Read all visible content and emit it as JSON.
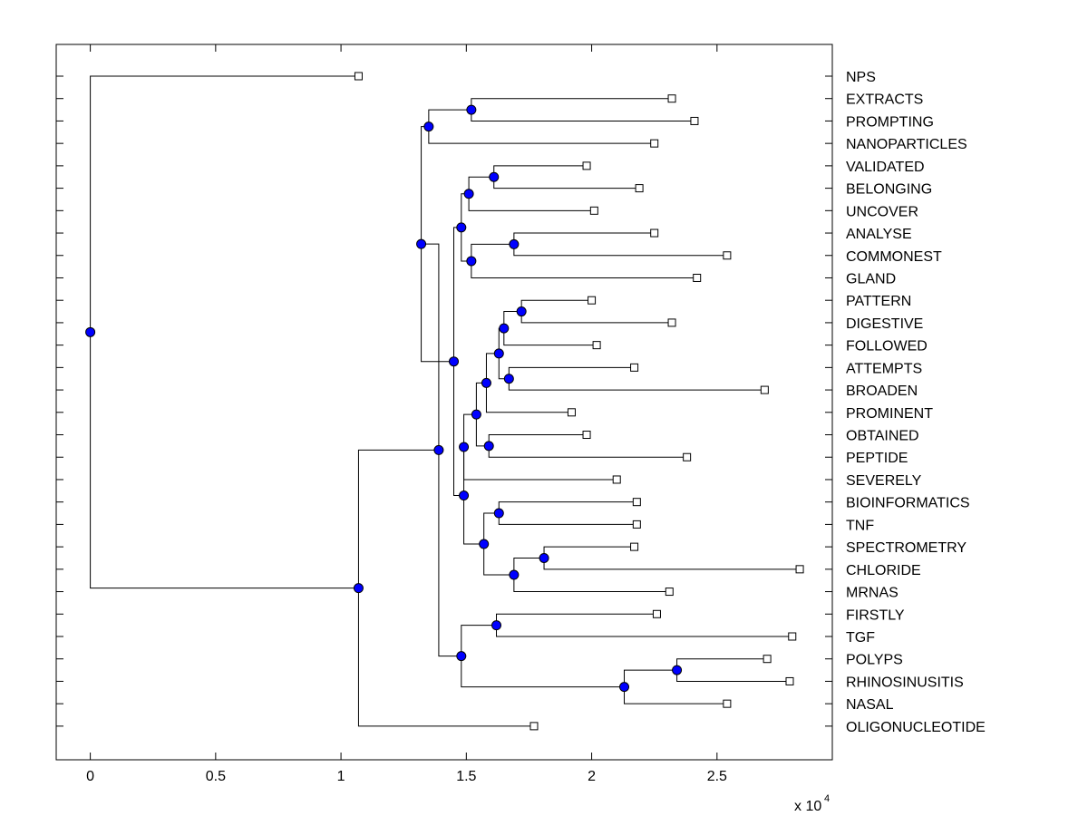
{
  "chart_data": {
    "type": "dendrogram",
    "x_axis": {
      "ticks": [
        0,
        0.5,
        1,
        1.5,
        2,
        2.5
      ],
      "tick_labels": [
        "0",
        "0.5",
        "1",
        "1.5",
        "2",
        "2.5"
      ],
      "xlim": [
        -0.136,
        2.96
      ],
      "multiplier_text": "x 10",
      "multiplier_exponent": "4"
    },
    "leaves": [
      {
        "label": "NPS",
        "value": 1.07
      },
      {
        "label": "EXTRACTS",
        "value": 2.32
      },
      {
        "label": "PROMPTING",
        "value": 2.41
      },
      {
        "label": "NANOPARTICLES",
        "value": 2.25
      },
      {
        "label": "VALIDATED",
        "value": 1.98
      },
      {
        "label": "BELONGING",
        "value": 2.19
      },
      {
        "label": "UNCOVER",
        "value": 2.01
      },
      {
        "label": "ANALYSE",
        "value": 2.25
      },
      {
        "label": "COMMONEST",
        "value": 2.54
      },
      {
        "label": "GLAND",
        "value": 2.42
      },
      {
        "label": "PATTERN",
        "value": 2.0
      },
      {
        "label": "DIGESTIVE",
        "value": 2.32
      },
      {
        "label": "FOLLOWED",
        "value": 2.02
      },
      {
        "label": "ATTEMPTS",
        "value": 2.17
      },
      {
        "label": "BROADEN",
        "value": 2.69
      },
      {
        "label": "PROMINENT",
        "value": 1.92
      },
      {
        "label": "OBTAINED",
        "value": 1.98
      },
      {
        "label": "PEPTIDE",
        "value": 2.38
      },
      {
        "label": "SEVERELY",
        "value": 2.1
      },
      {
        "label": "BIOINFORMATICS",
        "value": 2.18
      },
      {
        "label": "TNF",
        "value": 2.18
      },
      {
        "label": "SPECTROMETRY",
        "value": 2.17
      },
      {
        "label": "CHLORIDE",
        "value": 2.83
      },
      {
        "label": "MRNAS",
        "value": 2.31
      },
      {
        "label": "FIRSTLY",
        "value": 2.26
      },
      {
        "label": "TGF",
        "value": 2.8
      },
      {
        "label": "POLYPS",
        "value": 2.7
      },
      {
        "label": "RHINOSINUSITIS",
        "value": 2.79
      },
      {
        "label": "NASAL",
        "value": 2.54
      },
      {
        "label": "OLIGONUCLEOTIDE",
        "value": 1.77
      }
    ],
    "nodes": [
      {
        "value": 0.0,
        "children": [
          "L0",
          "N23"
        ]
      },
      {
        "value": 1.07,
        "children": [
          "N22",
          "L29"
        ]
      },
      {
        "value": 1.39,
        "children": [
          "N21",
          "N20"
        ]
      },
      {
        "value": 1.32,
        "children": [
          "N17",
          "N19"
        ]
      },
      {
        "value": 1.35,
        "children": [
          "N16",
          "L3"
        ]
      },
      {
        "value": 1.52,
        "children": [
          "L1",
          "L2"
        ]
      },
      {
        "value": 1.45,
        "children": [
          "N14",
          "N18"
        ]
      },
      {
        "value": 1.48,
        "children": [
          "N13",
          "N15"
        ]
      },
      {
        "value": 1.51,
        "children": [
          "N11",
          "L6"
        ]
      },
      {
        "value": 1.61,
        "children": [
          "L4",
          "L5"
        ]
      },
      {
        "value": 1.52,
        "children": [
          "N12",
          "L9"
        ]
      },
      {
        "value": 1.69,
        "children": [
          "L7",
          "L8"
        ]
      },
      {
        "value": 1.49,
        "children": [
          "N9",
          "N10"
        ]
      },
      {
        "value": 1.54,
        "children": [
          "N7",
          "N8"
        ]
      },
      {
        "value": 1.58,
        "children": [
          "N6",
          "L15"
        ]
      },
      {
        "value": 1.63,
        "children": [
          "N4",
          "N5"
        ]
      },
      {
        "value": 1.65,
        "children": [
          "N2",
          "L12"
        ]
      },
      {
        "value": 1.72,
        "children": [
          "L10",
          "L11"
        ]
      },
      {
        "value": 1.67,
        "children": [
          "L13",
          "L14"
        ]
      },
      {
        "value": 1.59,
        "children": [
          "L16",
          "L17"
        ]
      },
      {
        "value": 1.49,
        "children": [
          "N8b",
          "L18"
        ]
      },
      {
        "value": 1.57,
        "children": [
          "N1",
          "N3"
        ]
      },
      {
        "value": 1.63,
        "children": [
          "L19",
          "L20"
        ]
      },
      {
        "value": 1.69,
        "children": [
          "N0",
          "L23"
        ]
      },
      {
        "value": 1.81,
        "children": [
          "L21",
          "L22"
        ]
      },
      {
        "value": 1.48,
        "children": [
          "N26",
          "N25"
        ]
      },
      {
        "value": 1.62,
        "children": [
          "L24",
          "L25"
        ]
      },
      {
        "value": 2.13,
        "children": [
          "N24",
          "L28"
        ]
      },
      {
        "value": 2.34,
        "children": [
          "L26",
          "L27"
        ]
      }
    ]
  }
}
